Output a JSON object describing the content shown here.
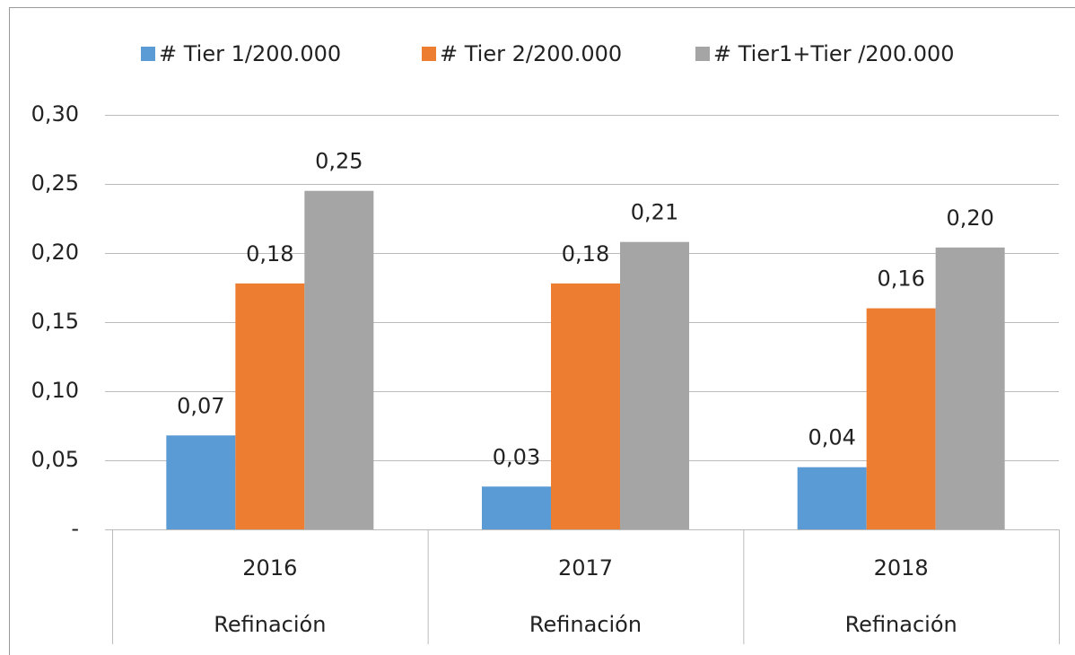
{
  "chart_data": {
    "type": "bar",
    "categories": [
      "2016",
      "2017",
      "2018"
    ],
    "category_groups": [
      "Refinación",
      "Refinación",
      "Refinación"
    ],
    "series": [
      {
        "name": "# Tier 1/200.000",
        "color": "#5b9bd5",
        "values": [
          0.068,
          0.031,
          0.045
        ],
        "value_labels": [
          "0,07",
          "0,03",
          "0,04"
        ]
      },
      {
        "name": "# Tier 2/200.000",
        "color": "#ed7d31",
        "values": [
          0.178,
          0.178,
          0.16
        ],
        "value_labels": [
          "0,18",
          "0,18",
          "0,16"
        ]
      },
      {
        "name": "# Tier1+Tier /200.000",
        "color": "#a5a5a5",
        "values": [
          0.245,
          0.208,
          0.204
        ],
        "value_labels": [
          "0,25",
          "0,21",
          "0,20"
        ]
      }
    ],
    "ylim": [
      0,
      0.3
    ],
    "yticks": [
      {
        "value": 0,
        "label": "-"
      },
      {
        "value": 0.05,
        "label": "0,05"
      },
      {
        "value": 0.1,
        "label": "0,10"
      },
      {
        "value": 0.15,
        "label": "0,15"
      },
      {
        "value": 0.2,
        "label": "0,20"
      },
      {
        "value": 0.25,
        "label": "0,25"
      },
      {
        "value": 0.3,
        "label": "0,30"
      }
    ],
    "grid": true,
    "legend": "top"
  }
}
